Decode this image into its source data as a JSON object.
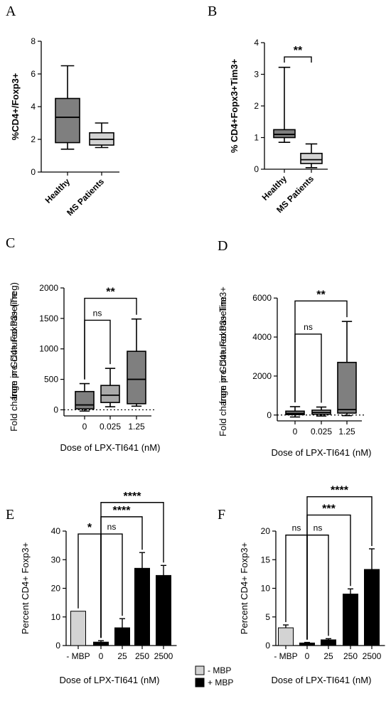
{
  "chart_data": [
    {
      "panel": "A",
      "type": "box",
      "ylabel": "%CD4+/Foxp3+",
      "ylim": [
        0,
        8
      ],
      "yticks": [
        "0",
        "2",
        "4",
        "6",
        "8"
      ],
      "categories": [
        "Healthy",
        "MS Patients"
      ],
      "boxes": [
        {
          "min": 1.4,
          "q1": 1.8,
          "median": 3.35,
          "q3": 4.5,
          "max": 6.5,
          "color": "#7f7f7f"
        },
        {
          "min": 1.5,
          "q1": 1.65,
          "median": 2.0,
          "q3": 2.4,
          "max": 3.0,
          "color": "#d3d3d3"
        }
      ]
    },
    {
      "panel": "B",
      "type": "box",
      "ylabel": "% CD4+Fopx3+Tim3+",
      "ylim": [
        0,
        4
      ],
      "yticks": [
        "0",
        "1",
        "2",
        "3",
        "4"
      ],
      "categories": [
        "Healthy",
        "MS Patients"
      ],
      "boxes": [
        {
          "min": 0.85,
          "q1": 1.0,
          "median": 1.1,
          "q3": 1.25,
          "max": 3.22,
          "color": "#7f7f7f"
        },
        {
          "min": 0.05,
          "q1": 0.18,
          "median": 0.3,
          "q3": 0.5,
          "max": 0.8,
          "color": "#d3d3d3"
        }
      ],
      "annotations": [
        {
          "text": "**",
          "from": 0,
          "to": 1,
          "y": 3.55
        }
      ]
    },
    {
      "panel": "C",
      "type": "box",
      "ylabel": "Fold change in CD4+ FoxP3+ (Treg) from pre-clutured baseline",
      "xlabel": "Dose of LPX-TI641 (nM)",
      "ylim": [
        -100,
        2000
      ],
      "yticks": [
        "0",
        "500",
        "1000",
        "1500",
        "2000"
      ],
      "categories": [
        "0",
        "0.025",
        "1.25"
      ],
      "boxes": [
        {
          "min": -20,
          "q1": 15,
          "median": 80,
          "q3": 300,
          "max": 430,
          "color": "#7f7f7f"
        },
        {
          "min": 50,
          "q1": 120,
          "median": 240,
          "q3": 400,
          "max": 680,
          "color": "#a9a9a9"
        },
        {
          "min": 60,
          "q1": 100,
          "median": 500,
          "q3": 960,
          "max": 1490,
          "color": "#7f7f7f"
        }
      ],
      "annotations": [
        {
          "text": "ns",
          "from": 0,
          "to": 1,
          "y": 1470
        },
        {
          "text": "**",
          "from": 0,
          "to": 2,
          "y": 1830
        }
      ]
    },
    {
      "panel": "D",
      "type": "box",
      "ylabel": "Fold change in CD4+ FoxP3+ Tim3+ from pre-clutured baseline",
      "xlabel": "Dose of LPX-TI641 (nM)",
      "ylim": [
        -300,
        6300
      ],
      "yticks": [
        "0",
        "2000",
        "4000",
        "6000"
      ],
      "categories": [
        "0",
        "0.025",
        "1.25"
      ],
      "boxes": [
        {
          "min": -100,
          "q1": 20,
          "median": 80,
          "q3": 200,
          "max": 430,
          "color": "#7f7f7f"
        },
        {
          "min": -50,
          "q1": 40,
          "median": 130,
          "q3": 250,
          "max": 410,
          "color": "#a9a9a9"
        },
        {
          "min": -30,
          "q1": 100,
          "median": 280,
          "q3": 2700,
          "max": 4800,
          "color": "#7f7f7f"
        }
      ],
      "annotations": [
        {
          "text": "ns",
          "from": 0,
          "to": 1,
          "y": 4150
        },
        {
          "text": "**",
          "from": 0,
          "to": 2,
          "y": 5850
        }
      ]
    },
    {
      "panel": "E",
      "type": "bar",
      "ylabel": "Percent CD4+ Foxp3+",
      "xlabel": "Dose of LPX-TI641 (nM)",
      "ylim": [
        0,
        40
      ],
      "yticks": [
        "0",
        "10",
        "20",
        "30",
        "40"
      ],
      "categories": [
        "- MBP",
        "0",
        "25",
        "250",
        "2500"
      ],
      "values": [
        12,
        1.2,
        6.2,
        27,
        24.5
      ],
      "errors": [
        0,
        0.5,
        3.2,
        5.5,
        3.5
      ],
      "colors": [
        "#d3d3d3",
        "#000000",
        "#000000",
        "#000000",
        "#000000"
      ],
      "annotations": [
        {
          "text": "*",
          "from": 0,
          "to": 1,
          "y": 39
        },
        {
          "text": "ns",
          "from": 1,
          "to": 2,
          "y": 39
        },
        {
          "text": "****",
          "from": 1,
          "to": 3,
          "y": 45
        },
        {
          "text": "****",
          "from": 1,
          "to": 4,
          "y": 50
        }
      ]
    },
    {
      "panel": "F",
      "type": "bar",
      "ylabel": "Percent CD4+ Foxp3+",
      "xlabel": "Dose of LPX-TI641 (nM)",
      "ylim": [
        0,
        20
      ],
      "yticks": [
        "0",
        "5",
        "10",
        "15",
        "20"
      ],
      "categories": [
        "- MBP",
        "0",
        "25",
        "250",
        "2500"
      ],
      "values": [
        3.1,
        0.45,
        1.0,
        9.0,
        13.3
      ],
      "errors": [
        0.5,
        0.1,
        0.2,
        0.9,
        3.6
      ],
      "colors": [
        "#d3d3d3",
        "#000000",
        "#000000",
        "#000000",
        "#000000"
      ],
      "annotations": [
        {
          "text": "ns",
          "from": 0,
          "to": 1,
          "y": 19.3
        },
        {
          "text": "ns",
          "from": 1,
          "to": 2,
          "y": 19.3
        },
        {
          "text": "***",
          "from": 1,
          "to": 3,
          "y": 22.8
        },
        {
          "text": "****",
          "from": 1,
          "to": 4,
          "y": 26
        }
      ]
    }
  ],
  "panel_letters": [
    "A",
    "B",
    "C",
    "D",
    "E",
    "F"
  ],
  "legend": [
    {
      "label": "-  MBP",
      "color": "#d3d3d3"
    },
    {
      "label": "+ MBP",
      "color": "#000000"
    }
  ]
}
